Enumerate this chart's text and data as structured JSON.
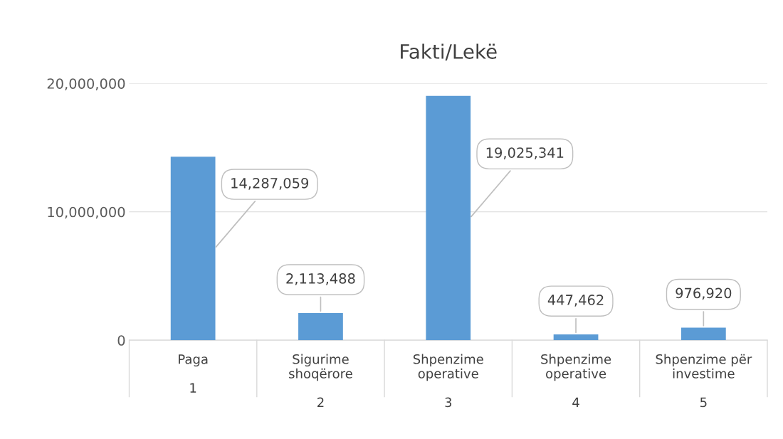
{
  "chart_data": {
    "type": "bar",
    "title": "Fakti/Lekë",
    "categories": [
      "Paga\n\n1",
      "Sigurime\nshoqërore\n\n2",
      "Shpenzime\noperative\n\n3",
      "Shpenzime\noperative\n\n4",
      "Shpenzime për\ninvestime\n\n5"
    ],
    "values": [
      14287059,
      2113488,
      19025341,
      447462,
      976920
    ],
    "value_labels": [
      "14,287,059",
      "2,113,488",
      "19,025,341",
      "447,462",
      "976,920"
    ],
    "color": "#5b9bd5",
    "ylim": [
      0,
      20000000
    ],
    "yticks": [
      {
        "value": 0,
        "label": "0"
      },
      {
        "value": 10000000,
        "label": "10,000,000"
      },
      {
        "value": 20000000,
        "label": "20,000,000"
      }
    ],
    "grid": "y"
  }
}
